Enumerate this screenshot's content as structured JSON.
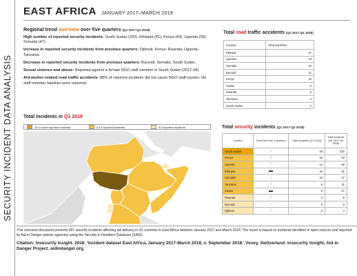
{
  "sidebar": {
    "label": "SECURITY INCIDENT DATA ANALYSIS"
  },
  "header": {
    "title": "EAST AFRICA",
    "subtitle": "JANUARY 2017–MARCH 2018"
  },
  "trend": {
    "heading_pre": "Regional trend",
    "heading_highlight": "overview",
    "heading_post": "over five quarters",
    "heading_small": "(Q1 2017-Q1 2018)",
    "items": [
      {
        "label": "High number of reported security incidents:",
        "text": " South Sudan (320), Ethiopia (81), Kenya (64), Uganda (59), Somalia (47)."
      },
      {
        "label": "Increase in reported security incidents from previous quarters:",
        "text": " Djibouti, Kenya, Rwanda, Uganda, Tanzania."
      },
      {
        "label": "Decrease in reported security incidents from previous quarters:",
        "text": " Burundi, Somalia, South Sudan."
      },
      {
        "label": "Sexual violence and abuse:",
        "text": " Reported against a female NGO staff member in South Sudan (2017-08)."
      },
      {
        "label": "Aid-worker-related road traffic accidents:",
        "text": " 88% of reported incidents did not cause NGO staff injuries. No staff member fatalities were reported."
      }
    ]
  },
  "road": {
    "title_pre": "Total",
    "title_highlight": "road",
    "title_post": "traffic accidents",
    "title_small": "(Q1 2017-Q1 2018)",
    "headers": [
      "Country",
      "Total incidents"
    ],
    "rows": [
      {
        "country": "Ethiopia",
        "total": "27"
      },
      {
        "country": "Uganda",
        "total": "19"
      },
      {
        "country": "Somalia",
        "total": "15"
      },
      {
        "country": "Burundi",
        "total": "11"
      },
      {
        "country": "Kenya",
        "total": "10"
      },
      {
        "country": "Sudan",
        "total": "8"
      },
      {
        "country": "Rwanda",
        "total": "6"
      },
      {
        "country": "Tanzania",
        "total": "4"
      },
      {
        "country": "South Sudan",
        "total": "2"
      }
    ]
  },
  "map": {
    "title_pre": "Total incidents in",
    "title_highlight": "Q1 2018",
    "legend": [
      {
        "label": "20 or more reported incidents",
        "color": "#e9a300"
      },
      {
        "label": "6-19 reported incidents",
        "color": "#f5c243"
      },
      {
        "label": "0-5 reported incidents",
        "color": "#fbe6b2"
      }
    ]
  },
  "security": {
    "title_pre": "Total",
    "title_highlight": "security",
    "title_post": "incidents",
    "title_small": "(Q1 2017-Q1 2018)",
    "headers": [
      "Country",
      "Trend line over 5 quarters",
      "Total incidents (Q1 2018)",
      "Total incidents (Q1 2017-Q1 2018)"
    ],
    "rows": [
      {
        "country": "South Sudan",
        "trend": "down",
        "q1": "48",
        "total": "320",
        "highlight": "#e9a300"
      },
      {
        "country": "Kenya",
        "trend": "up",
        "q1": "18",
        "total": "64",
        "highlight": "#f5c243"
      },
      {
        "country": "Uganda",
        "trend": "up",
        "q1": "13",
        "total": "59",
        "highlight": "#f5c243"
      },
      {
        "country": "Ethiopia",
        "trend": "flat",
        "q1": "10",
        "total": "81",
        "highlight": "#f5c243"
      },
      {
        "country": "Somalia*",
        "trend": "down",
        "q1": "10",
        "total": "47",
        "highlight": "#f5c243"
      },
      {
        "country": "Tanzania",
        "trend": "up",
        "q1": "9",
        "total": "31",
        "highlight": "#f5c243"
      },
      {
        "country": "Sudan",
        "trend": "flat",
        "q1": "6",
        "total": "37",
        "highlight": "#f5c243"
      },
      {
        "country": "Rwanda",
        "trend": "up",
        "q1": "4",
        "total": "6",
        "highlight": "#fbe6b2"
      },
      {
        "country": "Burundi",
        "trend": "down",
        "q1": "0",
        "total": "9",
        "highlight": "#fbe6b2"
      },
      {
        "country": "Djibouti",
        "trend": "up",
        "q1": "0",
        "total": "3",
        "highlight": "#fbe6b2"
      }
    ]
  },
  "footer": {
    "note": "This overview document presents 657 security incidents affecting aid delivery in 10 countries in East Africa between January 2017 and March 2018. The report is based on incidents identified in open sources and reported by Aid in Danger partner agencies using the Security in Numbers Database (SiND).",
    "citation": "Citation: Insecurity Insight. 2018. 'Incident dataset East Africa, January 2017-March 2018, v. September 2018.' Vevey, Switzerland: Insecurity Insight, Aid in Danger Project. aidindanger.org."
  }
}
